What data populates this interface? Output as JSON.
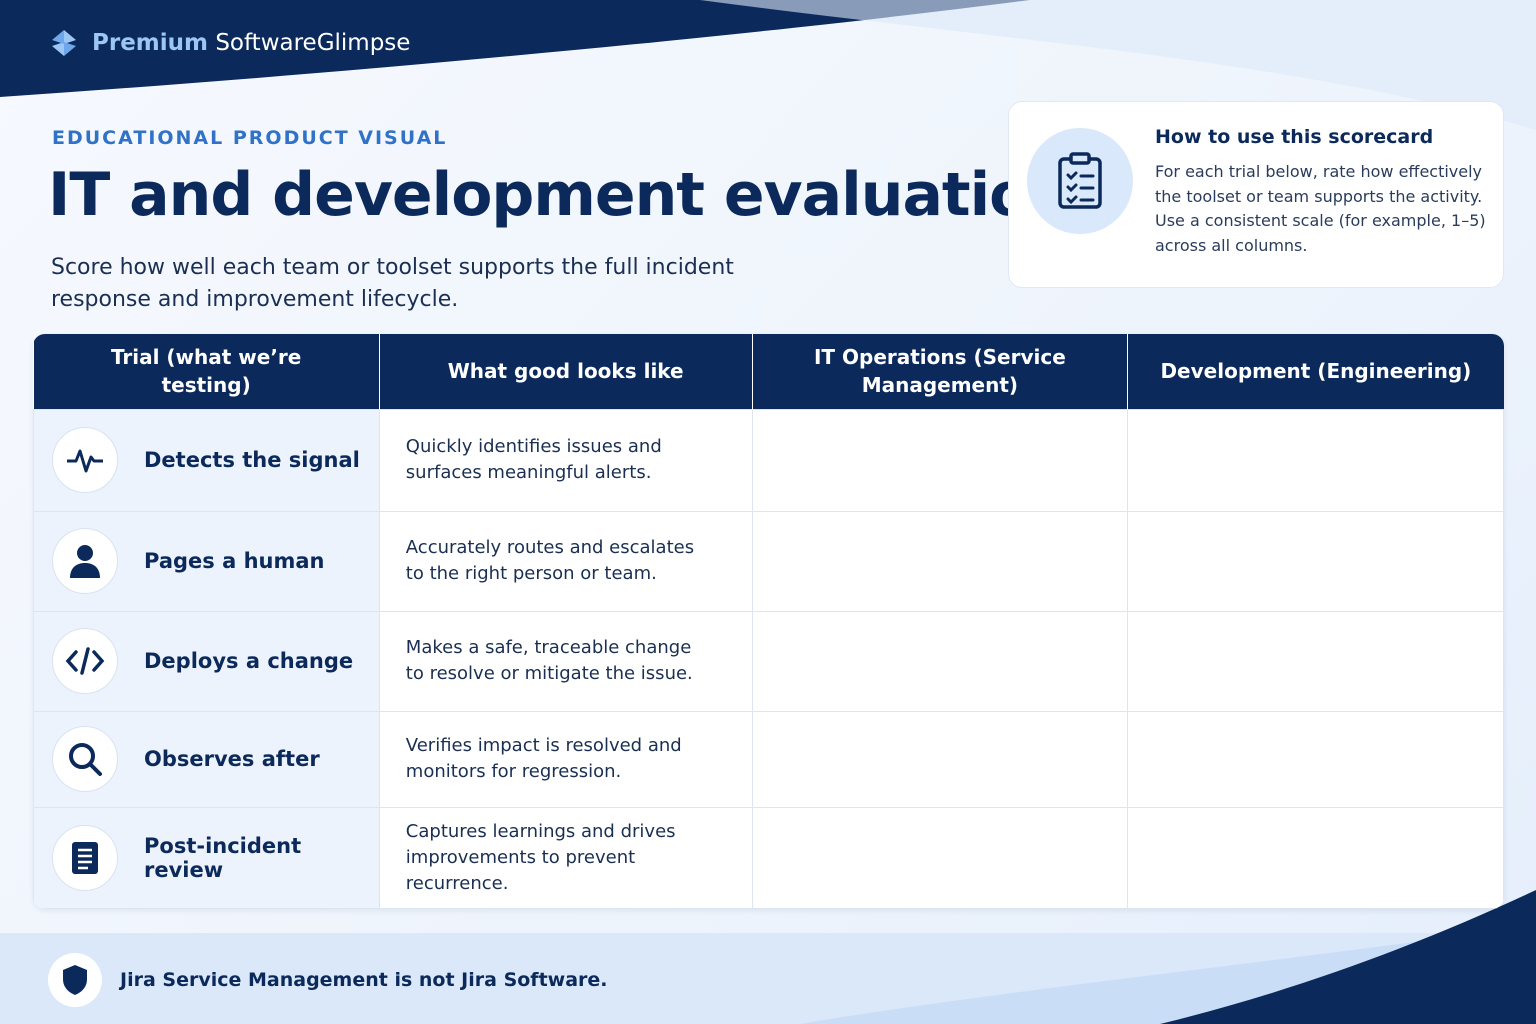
{
  "brand": {
    "bold": "Premium",
    "rest": "SoftwareGlimpse"
  },
  "header": {
    "eyebrow": "EDUCATIONAL PRODUCT VISUAL",
    "title": "IT and development evaluation",
    "subtitle": "Score how well each team or toolset supports the full incident response and improvement lifecycle."
  },
  "help_card": {
    "title": "How to use this scorecard",
    "body": "For each trial below, rate how effectively the toolset or team supports the activity. Use a consistent scale (for example, 1–5) across all columns."
  },
  "table": {
    "headers": [
      "Trial (what we’re testing)",
      "What good looks like",
      "IT Operations (Service Management)",
      "Development (Engineering)"
    ],
    "rows": [
      {
        "trial": "Detects the signal",
        "description": "Quickly identifies issues and surfaces meaningful alerts."
      },
      {
        "trial": "Pages a human",
        "description": "Accurately routes and escalates to the right person or team."
      },
      {
        "trial": "Deploys a change",
        "description": "Makes a safe, traceable change to resolve or mitigate the issue."
      },
      {
        "trial": "Observes after",
        "description": "Verifies impact is resolved and monitors for regression."
      },
      {
        "trial": "Post-incident review",
        "description": "Captures learnings and drives improvements to prevent recurrence."
      }
    ]
  },
  "footer": {
    "note": "Jira Service Management is not Jira Software."
  }
}
